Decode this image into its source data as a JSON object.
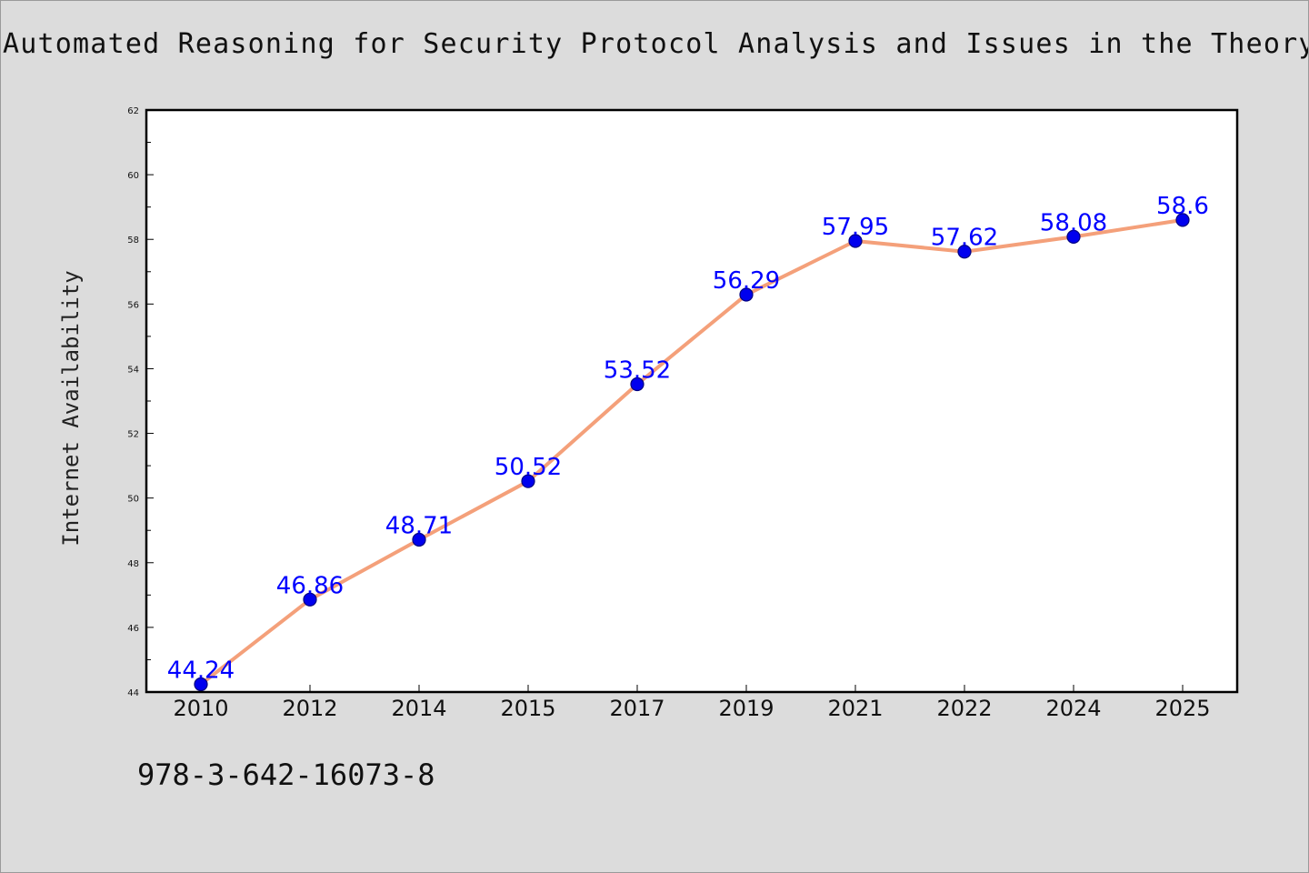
{
  "chart_data": {
    "type": "line",
    "title": "Automated Reasoning for Security Protocol Analysis and Issues in the Theory of Security",
    "xlabel": "",
    "ylabel": "Internet Availability",
    "categories": [
      "2010",
      "2012",
      "2014",
      "2015",
      "2017",
      "2019",
      "2021",
      "2022",
      "2024",
      "2025"
    ],
    "series": [
      {
        "values": [
          44.24,
          46.86,
          48.71,
          50.52,
          53.52,
          56.29,
          57.95,
          57.62,
          58.08,
          58.6
        ],
        "labels": [
          "44.24",
          "46.86",
          "48.71",
          "50.52",
          "53.52",
          "56.29",
          "57.95",
          "57.62",
          "58.08",
          "58.6"
        ]
      }
    ],
    "ylim": [
      44,
      62
    ],
    "yticks": [
      "44",
      "46",
      "48",
      "50",
      "52",
      "54",
      "56",
      "58",
      "60",
      "62"
    ],
    "grid": false,
    "legend": "none",
    "colors": {
      "line": "#f4a07a",
      "marker": "#0000ee",
      "marker_edge": "#000080",
      "data_label": "#0000ff"
    }
  },
  "footer": {
    "text": "978-3-642-16073-8"
  }
}
